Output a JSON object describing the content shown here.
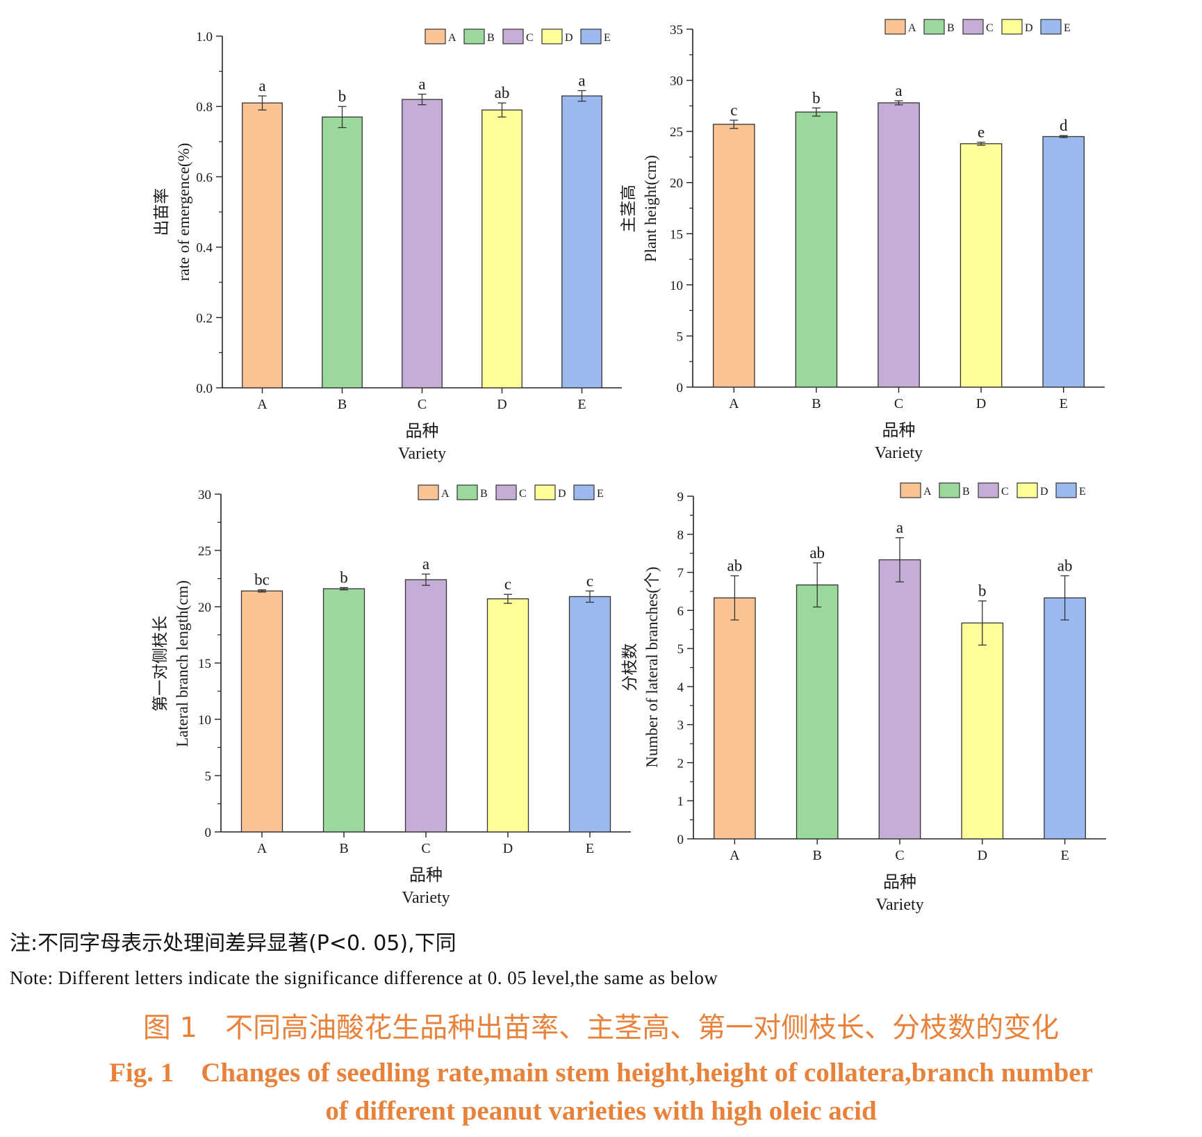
{
  "palette": {
    "A": "#f9c394",
    "B": "#9bd89b",
    "C": "#c4aed8",
    "D": "#ffff99",
    "E": "#9bb9ee"
  },
  "chart_data": [
    {
      "type": "bar",
      "categories": [
        "A",
        "B",
        "C",
        "D",
        "E"
      ],
      "values": [
        0.81,
        0.77,
        0.82,
        0.79,
        0.83
      ],
      "errors": [
        0.02,
        0.03,
        0.015,
        0.02,
        0.015
      ],
      "significance": [
        "a",
        "b",
        "a",
        "ab",
        "a"
      ],
      "ylim": [
        0,
        1.0
      ],
      "yticks": [
        "0.0",
        "0.2",
        "0.4",
        "0.6",
        "0.8",
        "1.0"
      ],
      "ylabel_cn": "出苗率",
      "ylabel": "rate of emergence(%)",
      "xlabel_cn": "品种",
      "xlabel": "Variety",
      "legend": [
        "A",
        "B",
        "C",
        "D",
        "E"
      ]
    },
    {
      "type": "bar",
      "categories": [
        "A",
        "B",
        "C",
        "D",
        "E"
      ],
      "values": [
        25.7,
        26.9,
        27.8,
        23.8,
        24.5
      ],
      "errors": [
        0.4,
        0.4,
        0.2,
        0.15,
        0.1
      ],
      "significance": [
        "c",
        "b",
        "a",
        "e",
        "d"
      ],
      "ylim": [
        0,
        35
      ],
      "yticks": [
        "0",
        "5",
        "10",
        "15",
        "20",
        "25",
        "30",
        "35"
      ],
      "ylabel_cn": "主茎高",
      "ylabel": "Plant height(cm)",
      "xlabel_cn": "品种",
      "xlabel": "Variety",
      "legend": [
        "A",
        "B",
        "C",
        "D",
        "E"
      ]
    },
    {
      "type": "bar",
      "categories": [
        "A",
        "B",
        "C",
        "D",
        "E"
      ],
      "values": [
        21.4,
        21.6,
        22.4,
        20.7,
        20.9
      ],
      "errors": [
        0.1,
        0.1,
        0.5,
        0.4,
        0.5
      ],
      "significance": [
        "bc",
        "b",
        "a",
        "c",
        "c"
      ],
      "ylim": [
        0,
        30
      ],
      "yticks": [
        "0",
        "5",
        "10",
        "15",
        "20",
        "25",
        "30"
      ],
      "ylabel_cn": "第一对侧枝长",
      "ylabel": "Lateral branch length(cm)",
      "xlabel_cn": "品种",
      "xlabel": "Variety",
      "legend": [
        "A",
        "B",
        "C",
        "D",
        "E"
      ]
    },
    {
      "type": "bar",
      "categories": [
        "A",
        "B",
        "C",
        "D",
        "E"
      ],
      "values": [
        6.33,
        6.67,
        7.33,
        5.67,
        6.33
      ],
      "errors": [
        0.58,
        0.58,
        0.58,
        0.58,
        0.58
      ],
      "significance": [
        "ab",
        "ab",
        "a",
        "b",
        "ab"
      ],
      "ylim": [
        0,
        9
      ],
      "yticks": [
        "0",
        "1",
        "2",
        "3",
        "4",
        "5",
        "6",
        "7",
        "8",
        "9"
      ],
      "ylabel_cn": "分枝数",
      "ylabel": "Number of lateral branches(个)",
      "xlabel_cn": "品种",
      "xlabel": "Variety",
      "legend": [
        "A",
        "B",
        "C",
        "D",
        "E"
      ]
    }
  ],
  "notes": {
    "cn": "注:不同字母表示处理间差异显著(P<0. 05),下同",
    "en": "Note: Different letters indicate the significance difference at 0. 05 level,the same as below"
  },
  "caption": {
    "cn": "图 1　不同高油酸花生品种出苗率、主茎高、第一对侧枝长、分枝数的变化",
    "en_line1": "Fig. 1　Changes of seedling rate,main stem height,height of collatera,branch number",
    "en_line2": "of different peanut varieties with high oleic acid"
  }
}
